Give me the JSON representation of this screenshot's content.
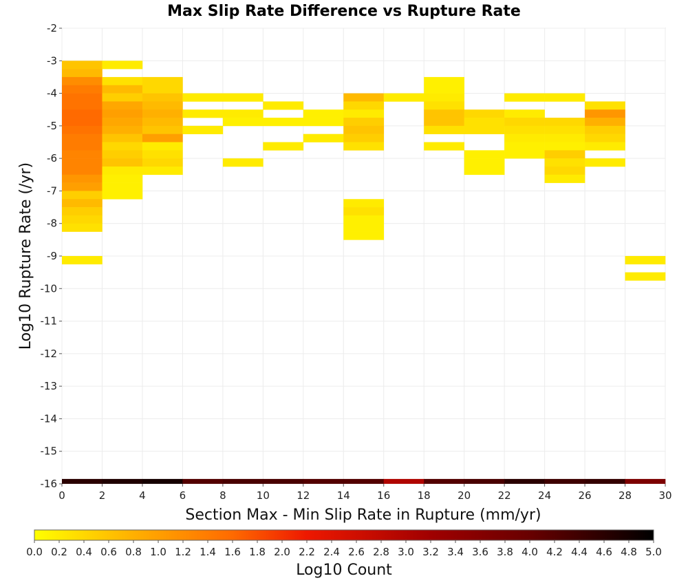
{
  "chart_data": {
    "type": "heatmap",
    "title": "Max Slip Rate Difference vs Rupture Rate",
    "xlabel": "Section Max - Min Slip Rate in Rupture (mm/yr)",
    "ylabel": "Log10 Rupture Rate (/yr)",
    "xlim": [
      0,
      30
    ],
    "ylim": [
      -16,
      -2
    ],
    "x_bin_width": 2,
    "y_bin_width": 0.25,
    "x_ticks": [
      "0",
      "2",
      "4",
      "6",
      "8",
      "10",
      "12",
      "14",
      "16",
      "18",
      "20",
      "22",
      "24",
      "26",
      "28",
      "30"
    ],
    "y_ticks": [
      "-2",
      "-3",
      "-4",
      "-5",
      "-6",
      "-7",
      "-8",
      "-9",
      "-10",
      "-11",
      "-12",
      "-13",
      "-14",
      "-15",
      "-16"
    ],
    "grid": true,
    "colorbar": {
      "label": "Log10 Count",
      "min": 0,
      "max": 5,
      "ticks": [
        "0.0",
        "0.2",
        "0.4",
        "0.6",
        "0.8",
        "1.0",
        "1.2",
        "1.4",
        "1.6",
        "1.8",
        "2.0",
        "2.2",
        "2.4",
        "2.6",
        "2.8",
        "3.0",
        "3.2",
        "3.4",
        "3.6",
        "3.8",
        "4.0",
        "4.2",
        "4.4",
        "4.6",
        "4.8",
        "5.0"
      ],
      "stops": [
        {
          "v": 0.0,
          "c": "#ffff00"
        },
        {
          "v": 0.8,
          "c": "#ffb000"
        },
        {
          "v": 1.6,
          "c": "#ff6a00"
        },
        {
          "v": 2.2,
          "c": "#ee1800"
        },
        {
          "v": 3.2,
          "c": "#a00000"
        },
        {
          "v": 4.0,
          "c": "#680000"
        },
        {
          "v": 5.0,
          "c": "#000000"
        }
      ]
    },
    "cells": [
      {
        "x0": 0,
        "y0": -3.25,
        "v": 0.6
      },
      {
        "x0": 0,
        "y0": -3.5,
        "v": 0.7
      },
      {
        "x0": 0,
        "y0": -3.75,
        "v": 1.2
      },
      {
        "x0": 0,
        "y0": -4.0,
        "v": 1.4
      },
      {
        "x0": 0,
        "y0": -4.25,
        "v": 1.5
      },
      {
        "x0": 0,
        "y0": -4.5,
        "v": 1.5
      },
      {
        "x0": 0,
        "y0": -4.75,
        "v": 1.6
      },
      {
        "x0": 0,
        "y0": -5.0,
        "v": 1.6
      },
      {
        "x0": 0,
        "y0": -5.25,
        "v": 1.5
      },
      {
        "x0": 0,
        "y0": -5.5,
        "v": 1.4
      },
      {
        "x0": 0,
        "y0": -5.75,
        "v": 1.4
      },
      {
        "x0": 0,
        "y0": -6.0,
        "v": 1.3
      },
      {
        "x0": 0,
        "y0": -6.25,
        "v": 1.3
      },
      {
        "x0": 0,
        "y0": -6.5,
        "v": 1.3
      },
      {
        "x0": 0,
        "y0": -6.75,
        "v": 1.1
      },
      {
        "x0": 0,
        "y0": -7.0,
        "v": 1.0
      },
      {
        "x0": 0,
        "y0": -7.25,
        "v": 0.5
      },
      {
        "x0": 0,
        "y0": -7.5,
        "v": 0.7
      },
      {
        "x0": 0,
        "y0": -7.75,
        "v": 0.5
      },
      {
        "x0": 0,
        "y0": -8.0,
        "v": 0.4
      },
      {
        "x0": 0,
        "y0": -8.25,
        "v": 0.3
      },
      {
        "x0": 0,
        "y0": -9.25,
        "v": 0.2
      },
      {
        "x0": 2,
        "y0": -3.25,
        "v": 0.2
      },
      {
        "x0": 2,
        "y0": -3.75,
        "v": 0.3
      },
      {
        "x0": 2,
        "y0": -4.0,
        "v": 0.7
      },
      {
        "x0": 2,
        "y0": -4.25,
        "v": 0.5
      },
      {
        "x0": 2,
        "y0": -4.5,
        "v": 0.9
      },
      {
        "x0": 2,
        "y0": -4.75,
        "v": 1.0
      },
      {
        "x0": 2,
        "y0": -5.0,
        "v": 0.9
      },
      {
        "x0": 2,
        "y0": -5.25,
        "v": 0.8
      },
      {
        "x0": 2,
        "y0": -5.5,
        "v": 0.6
      },
      {
        "x0": 2,
        "y0": -5.75,
        "v": 0.4
      },
      {
        "x0": 2,
        "y0": -6.0,
        "v": 0.5
      },
      {
        "x0": 2,
        "y0": -6.25,
        "v": 0.6
      },
      {
        "x0": 2,
        "y0": -6.5,
        "v": 0.2
      },
      {
        "x0": 2,
        "y0": -6.75,
        "v": 0.15
      },
      {
        "x0": 2,
        "y0": -7.0,
        "v": 0.15
      },
      {
        "x0": 2,
        "y0": -7.25,
        "v": 0.15
      },
      {
        "x0": 4,
        "y0": -3.75,
        "v": 0.4
      },
      {
        "x0": 4,
        "y0": -4.0,
        "v": 0.4
      },
      {
        "x0": 4,
        "y0": -4.25,
        "v": 0.6
      },
      {
        "x0": 4,
        "y0": -4.5,
        "v": 0.7
      },
      {
        "x0": 4,
        "y0": -4.75,
        "v": 0.8
      },
      {
        "x0": 4,
        "y0": -5.0,
        "v": 0.7
      },
      {
        "x0": 4,
        "y0": -5.25,
        "v": 0.6
      },
      {
        "x0": 4,
        "y0": -5.5,
        "v": 1.0
      },
      {
        "x0": 4,
        "y0": -5.75,
        "v": 0.2
      },
      {
        "x0": 4,
        "y0": -6.0,
        "v": 0.3
      },
      {
        "x0": 4,
        "y0": -6.25,
        "v": 0.4
      },
      {
        "x0": 4,
        "y0": -6.5,
        "v": 0.2
      },
      {
        "x0": 6,
        "y0": -4.25,
        "v": 0.2
      },
      {
        "x0": 6,
        "y0": -4.75,
        "v": 0.2
      },
      {
        "x0": 6,
        "y0": -5.25,
        "v": 0.2
      },
      {
        "x0": 8,
        "y0": -4.25,
        "v": 0.2
      },
      {
        "x0": 8,
        "y0": -4.75,
        "v": 0.2
      },
      {
        "x0": 8,
        "y0": -5.0,
        "v": 0.15
      },
      {
        "x0": 8,
        "y0": -6.25,
        "v": 0.2
      },
      {
        "x0": 10,
        "y0": -4.5,
        "v": 0.2
      },
      {
        "x0": 10,
        "y0": -5.0,
        "v": 0.15
      },
      {
        "x0": 10,
        "y0": -5.75,
        "v": 0.2
      },
      {
        "x0": 12,
        "y0": -4.75,
        "v": 0.15
      },
      {
        "x0": 12,
        "y0": -5.0,
        "v": 0.15
      },
      {
        "x0": 12,
        "y0": -5.5,
        "v": 0.2
      },
      {
        "x0": 14,
        "y0": -4.25,
        "v": 0.7
      },
      {
        "x0": 14,
        "y0": -4.5,
        "v": 0.4
      },
      {
        "x0": 14,
        "y0": -4.75,
        "v": 0.2
      },
      {
        "x0": 14,
        "y0": -5.0,
        "v": 0.5
      },
      {
        "x0": 14,
        "y0": -5.25,
        "v": 0.6
      },
      {
        "x0": 14,
        "y0": -5.5,
        "v": 0.5
      },
      {
        "x0": 14,
        "y0": -5.75,
        "v": 0.3
      },
      {
        "x0": 14,
        "y0": -7.5,
        "v": 0.2
      },
      {
        "x0": 14,
        "y0": -7.75,
        "v": 0.3
      },
      {
        "x0": 14,
        "y0": -8.0,
        "v": 0.15
      },
      {
        "x0": 14,
        "y0": -8.25,
        "v": 0.15
      },
      {
        "x0": 14,
        "y0": -8.5,
        "v": 0.15
      },
      {
        "x0": 16,
        "y0": -4.25,
        "v": 0.2
      },
      {
        "x0": 18,
        "y0": -3.75,
        "v": 0.15
      },
      {
        "x0": 18,
        "y0": -4.0,
        "v": 0.15
      },
      {
        "x0": 18,
        "y0": -4.25,
        "v": 0.2
      },
      {
        "x0": 18,
        "y0": -4.5,
        "v": 0.3
      },
      {
        "x0": 18,
        "y0": -4.75,
        "v": 0.6
      },
      {
        "x0": 18,
        "y0": -5.0,
        "v": 0.6
      },
      {
        "x0": 18,
        "y0": -5.25,
        "v": 0.3
      },
      {
        "x0": 18,
        "y0": -5.75,
        "v": 0.2
      },
      {
        "x0": 20,
        "y0": -4.75,
        "v": 0.4
      },
      {
        "x0": 20,
        "y0": -5.0,
        "v": 0.3
      },
      {
        "x0": 20,
        "y0": -5.25,
        "v": 0.3
      },
      {
        "x0": 20,
        "y0": -6.0,
        "v": 0.15
      },
      {
        "x0": 20,
        "y0": -6.25,
        "v": 0.15
      },
      {
        "x0": 20,
        "y0": -6.5,
        "v": 0.15
      },
      {
        "x0": 22,
        "y0": -4.25,
        "v": 0.2
      },
      {
        "x0": 22,
        "y0": -4.75,
        "v": 0.2
      },
      {
        "x0": 22,
        "y0": -5.0,
        "v": 0.4
      },
      {
        "x0": 22,
        "y0": -5.25,
        "v": 0.3
      },
      {
        "x0": 22,
        "y0": -5.5,
        "v": 0.2
      },
      {
        "x0": 22,
        "y0": -5.75,
        "v": 0.15
      },
      {
        "x0": 22,
        "y0": -6.0,
        "v": 0.15
      },
      {
        "x0": 24,
        "y0": -4.25,
        "v": 0.2
      },
      {
        "x0": 24,
        "y0": -5.0,
        "v": 0.4
      },
      {
        "x0": 24,
        "y0": -5.25,
        "v": 0.3
      },
      {
        "x0": 24,
        "y0": -5.5,
        "v": 0.2
      },
      {
        "x0": 24,
        "y0": -5.75,
        "v": 0.15
      },
      {
        "x0": 24,
        "y0": -6.0,
        "v": 0.5
      },
      {
        "x0": 24,
        "y0": -6.25,
        "v": 0.3
      },
      {
        "x0": 24,
        "y0": -6.5,
        "v": 0.4
      },
      {
        "x0": 24,
        "y0": -6.75,
        "v": 0.2
      },
      {
        "x0": 26,
        "y0": -4.5,
        "v": 0.3
      },
      {
        "x0": 26,
        "y0": -4.75,
        "v": 1.1
      },
      {
        "x0": 26,
        "y0": -5.0,
        "v": 0.8
      },
      {
        "x0": 26,
        "y0": -5.25,
        "v": 0.5
      },
      {
        "x0": 26,
        "y0": -5.5,
        "v": 0.4
      },
      {
        "x0": 26,
        "y0": -5.75,
        "v": 0.2
      },
      {
        "x0": 26,
        "y0": -6.25,
        "v": 0.2
      },
      {
        "x0": 28,
        "y0": -9.25,
        "v": 0.2
      },
      {
        "x0": 28,
        "y0": -9.75,
        "v": 0.2
      }
    ],
    "baseline_row": {
      "y0": -16,
      "height": 0.15,
      "values": [
        4.6,
        4.7,
        4.8,
        4.2,
        4.3,
        4.3,
        4.2,
        4.2,
        3.0,
        4.2,
        4.3,
        4.6,
        4.4,
        4.5,
        3.7
      ]
    }
  }
}
